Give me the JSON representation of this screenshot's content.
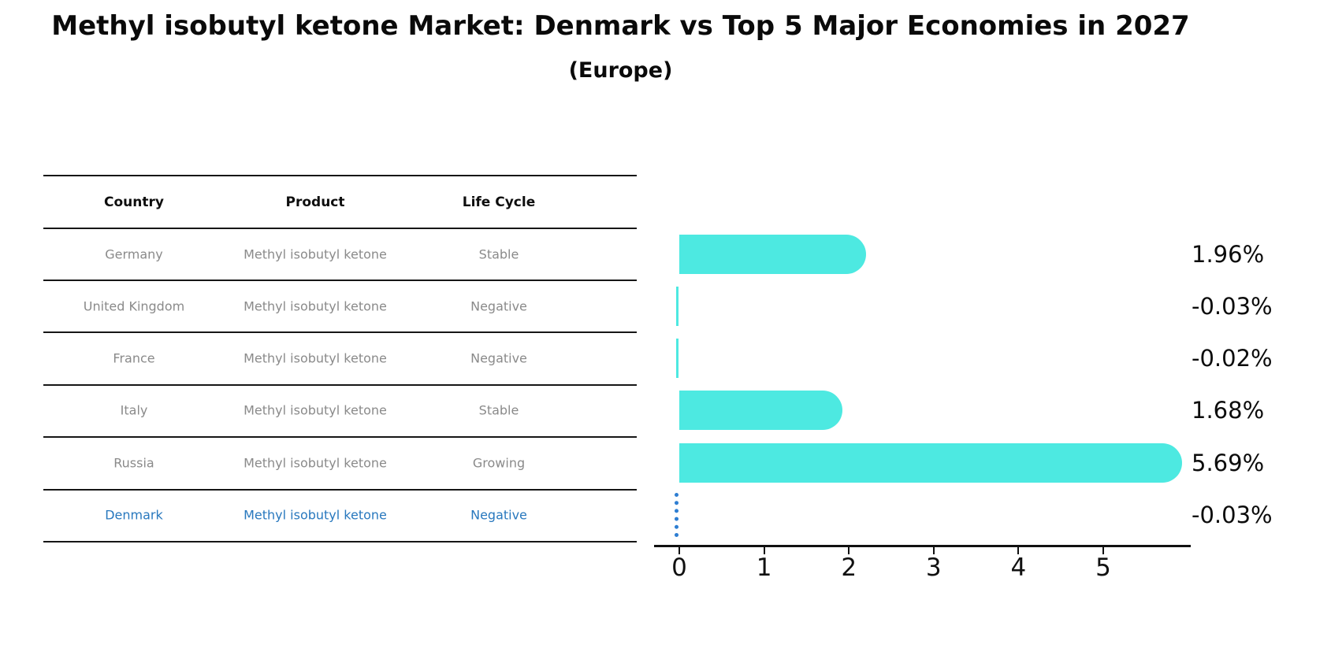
{
  "header": {
    "title": "Methyl isobutyl ketone Market: Denmark vs Top 5 Major Economies in 2027",
    "subtitle": "(Europe)"
  },
  "table": {
    "columns": [
      "Country",
      "Product",
      "Life Cycle"
    ],
    "rows": [
      {
        "country": "Germany",
        "product": "Methyl isobutyl ketone",
        "life_cycle": "Stable",
        "highlight": false
      },
      {
        "country": "United Kingdom",
        "product": "Methyl isobutyl ketone",
        "life_cycle": "Negative",
        "highlight": false
      },
      {
        "country": "France",
        "product": "Methyl isobutyl ketone",
        "life_cycle": "Negative",
        "highlight": false
      },
      {
        "country": "Italy",
        "product": "Methyl isobutyl ketone",
        "life_cycle": "Stable",
        "highlight": false
      },
      {
        "country": "Russia",
        "product": "Methyl isobutyl ketone",
        "life_cycle": "Growing",
        "highlight": false
      },
      {
        "country": "Denmark",
        "product": "Methyl isobutyl ketone",
        "life_cycle": "Negative",
        "highlight": true
      }
    ]
  },
  "chart_data": {
    "type": "bar",
    "orientation": "horizontal",
    "title": "Methyl isobutyl ketone Market: Denmark vs Top 5 Major Economies in 2027",
    "subtitle": "(Europe)",
    "categories": [
      "Germany",
      "United Kingdom",
      "France",
      "Italy",
      "Russia",
      "Denmark"
    ],
    "values": [
      1.96,
      -0.03,
      -0.02,
      1.68,
      5.69,
      -0.03
    ],
    "value_labels": [
      "1.96%",
      "-0.03%",
      "-0.02%",
      "1.68%",
      "5.69%",
      "-0.03%"
    ],
    "x_ticks": [
      0,
      1,
      2,
      3,
      4,
      5
    ],
    "x_tick_labels": [
      "0",
      "1",
      "2",
      "3",
      "4",
      "5"
    ],
    "xlim": [
      -0.3,
      6.05
    ],
    "grid": false,
    "legend": false,
    "bar_color": "#4DE9E1",
    "highlight_index": 5,
    "highlight_marker_color": "#2e7ed2",
    "highlight_text_color": "#2878be",
    "axis_color": "#111111",
    "table_text_color": "#8a8a8a"
  }
}
